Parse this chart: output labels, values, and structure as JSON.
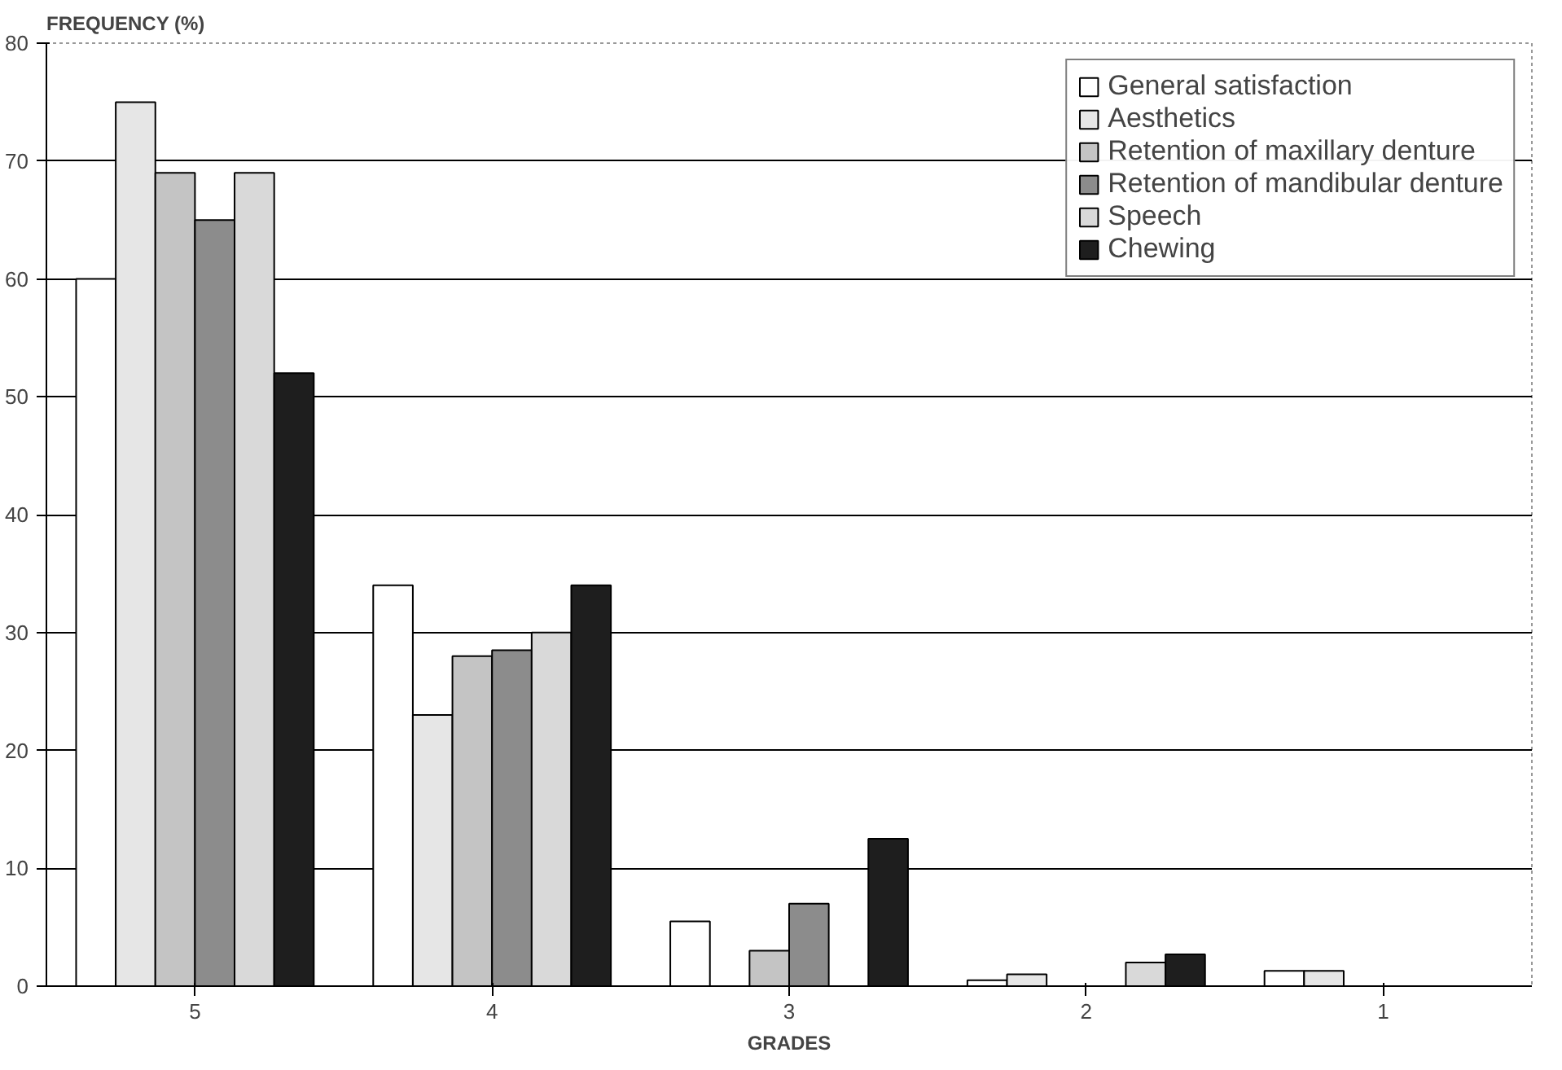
{
  "chart_data": {
    "type": "bar",
    "xlabel": "GRADES",
    "ylabel": "FREQUENCY (%)",
    "categories": [
      "5",
      "4",
      "3",
      "2",
      "1"
    ],
    "series": [
      {
        "name": "General satisfaction",
        "color": "#ffffff",
        "values": [
          60,
          34,
          5.5,
          0.5,
          1.3
        ]
      },
      {
        "name": "Aesthetics",
        "color": "#e6e6e6",
        "values": [
          75,
          23,
          0,
          1,
          1.3
        ]
      },
      {
        "name": "Retention of maxillary denture",
        "color": "#c4c4c4",
        "values": [
          69,
          28,
          3,
          0,
          0
        ]
      },
      {
        "name": "Retention of mandibular denture",
        "color": "#8c8c8c",
        "values": [
          65,
          28.5,
          7,
          0,
          0
        ]
      },
      {
        "name": "Speech",
        "color": "#d9d9d9",
        "values": [
          69,
          30,
          0,
          2,
          0
        ]
      },
      {
        "name": "Chewing",
        "color": "#1e1e1e",
        "values": [
          52,
          34,
          12.5,
          2.7,
          0
        ]
      }
    ],
    "ylim": [
      0,
      80
    ],
    "yticks": [
      0,
      10,
      20,
      30,
      40,
      50,
      60,
      70,
      80
    ],
    "grid": "y",
    "legend": "top right"
  }
}
